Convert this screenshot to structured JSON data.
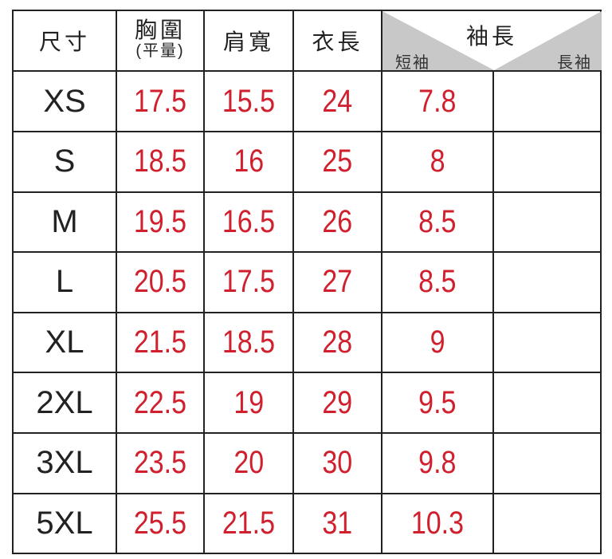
{
  "headers": {
    "size": "尺寸",
    "chest": "胸圍",
    "chest_note": "(平量)",
    "shoulder": "肩寬",
    "length": "衣長",
    "sleeve": "袖長",
    "short_sleeve": "短袖",
    "long_sleeve": "長袖"
  },
  "rows": [
    {
      "size": "XS",
      "chest": "17.5",
      "shoulder": "15.5",
      "length": "24",
      "short": "7.8",
      "long": ""
    },
    {
      "size": "S",
      "chest": "18.5",
      "shoulder": "16",
      "length": "25",
      "short": "8",
      "long": ""
    },
    {
      "size": "M",
      "chest": "19.5",
      "shoulder": "16.5",
      "length": "26",
      "short": "8.5",
      "long": ""
    },
    {
      "size": "L",
      "chest": "20.5",
      "shoulder": "17.5",
      "length": "27",
      "short": "8.5",
      "long": ""
    },
    {
      "size": "XL",
      "chest": "21.5",
      "shoulder": "18.5",
      "length": "28",
      "short": "9",
      "long": ""
    },
    {
      "size": "2XL",
      "chest": "22.5",
      "shoulder": "19",
      "length": "29",
      "short": "9.5",
      "long": ""
    },
    {
      "size": "3XL",
      "chest": "23.5",
      "shoulder": "20",
      "length": "30",
      "short": "9.8",
      "long": ""
    },
    {
      "size": "5XL",
      "chest": "25.5",
      "shoulder": "21.5",
      "length": "31",
      "short": "10.3",
      "long": ""
    }
  ],
  "colors": {
    "value": "#d0202e",
    "header_shade": "#c8c8c8"
  }
}
